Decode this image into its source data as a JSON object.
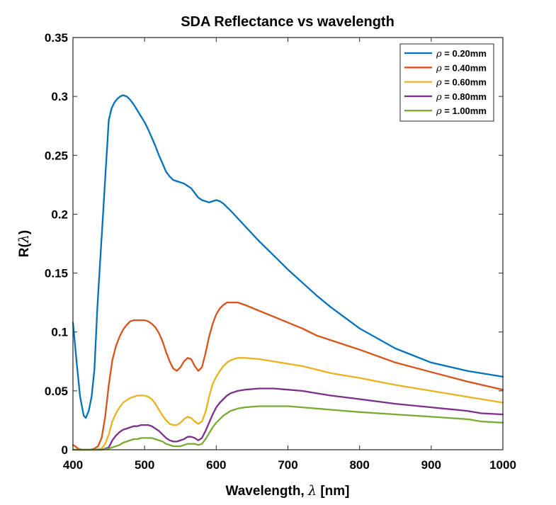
{
  "chart_data": {
    "type": "line",
    "title": "SDA Reflectance vs wavelength",
    "xlabel": {
      "prefix": "Wavelength, ",
      "symbol": "λ",
      "suffix": " [nm]"
    },
    "ylabel": {
      "prefix": "R(",
      "symbol": "λ",
      "suffix": ")"
    },
    "xlim": [
      400,
      1000
    ],
    "ylim": [
      0,
      0.35
    ],
    "xticks": [
      400,
      500,
      600,
      700,
      800,
      900,
      1000
    ],
    "yticks": [
      0,
      0.05,
      0.1,
      0.15,
      0.2,
      0.25,
      0.3,
      0.35
    ],
    "xtick_labels": [
      "400",
      "500",
      "600",
      "700",
      "800",
      "900",
      "1000"
    ],
    "ytick_labels": [
      "0",
      "0.05",
      "0.1",
      "0.15",
      "0.2",
      "0.25",
      "0.3",
      "0.35"
    ],
    "grid": false,
    "legend_position": "top-right",
    "series": [
      {
        "name": "ρ = 0.20mm",
        "symbol": "ρ",
        "label_rest": " = 0.20mm",
        "color": "#0072BD",
        "x": [
          400,
          405,
          410,
          415,
          418,
          422,
          426,
          430,
          434,
          438,
          442,
          446,
          450,
          454,
          458,
          462,
          466,
          470,
          475,
          480,
          485,
          490,
          495,
          500,
          505,
          510,
          515,
          520,
          525,
          530,
          535,
          540,
          545,
          550,
          555,
          560,
          565,
          570,
          575,
          580,
          585,
          590,
          595,
          600,
          605,
          610,
          620,
          640,
          660,
          680,
          700,
          720,
          740,
          760,
          800,
          850,
          900,
          950,
          1000
        ],
        "y": [
          0.108,
          0.075,
          0.045,
          0.029,
          0.027,
          0.033,
          0.045,
          0.068,
          0.12,
          0.16,
          0.2,
          0.24,
          0.28,
          0.29,
          0.295,
          0.298,
          0.3,
          0.301,
          0.3,
          0.297,
          0.293,
          0.288,
          0.283,
          0.278,
          0.272,
          0.265,
          0.258,
          0.25,
          0.243,
          0.236,
          0.232,
          0.229,
          0.228,
          0.227,
          0.226,
          0.224,
          0.222,
          0.218,
          0.214,
          0.212,
          0.211,
          0.21,
          0.211,
          0.212,
          0.211,
          0.209,
          0.203,
          0.19,
          0.177,
          0.165,
          0.153,
          0.142,
          0.131,
          0.121,
          0.103,
          0.086,
          0.074,
          0.067,
          0.062
        ]
      },
      {
        "name": "ρ = 0.40mm",
        "symbol": "ρ",
        "label_rest": " = 0.40mm",
        "color": "#D95319",
        "x": [
          400,
          403,
          407,
          412,
          418,
          425,
          430,
          435,
          440,
          445,
          450,
          455,
          460,
          465,
          470,
          475,
          480,
          485,
          490,
          495,
          500,
          505,
          510,
          515,
          520,
          525,
          530,
          535,
          540,
          545,
          550,
          555,
          560,
          565,
          570,
          575,
          580,
          585,
          590,
          595,
          600,
          605,
          610,
          615,
          620,
          630,
          640,
          660,
          680,
          700,
          720,
          740,
          760,
          800,
          850,
          900,
          950,
          1000
        ],
        "y": [
          0.004,
          0.003,
          0.001,
          0.0,
          0.0,
          0.0,
          0.001,
          0.003,
          0.01,
          0.028,
          0.055,
          0.076,
          0.088,
          0.096,
          0.102,
          0.106,
          0.109,
          0.11,
          0.11,
          0.11,
          0.11,
          0.109,
          0.107,
          0.104,
          0.099,
          0.092,
          0.083,
          0.075,
          0.069,
          0.067,
          0.07,
          0.075,
          0.078,
          0.077,
          0.071,
          0.067,
          0.07,
          0.082,
          0.096,
          0.107,
          0.115,
          0.12,
          0.123,
          0.125,
          0.125,
          0.125,
          0.123,
          0.118,
          0.113,
          0.108,
          0.103,
          0.097,
          0.093,
          0.085,
          0.074,
          0.066,
          0.058,
          0.051
        ]
      },
      {
        "name": "ρ = 0.60mm",
        "symbol": "ρ",
        "label_rest": " = 0.60mm",
        "color": "#EDB120",
        "x": [
          400,
          410,
          420,
          430,
          440,
          445,
          450,
          455,
          460,
          465,
          470,
          475,
          480,
          485,
          490,
          495,
          500,
          505,
          510,
          515,
          520,
          525,
          530,
          535,
          540,
          545,
          550,
          555,
          560,
          565,
          570,
          575,
          580,
          585,
          590,
          595,
          600,
          605,
          610,
          615,
          620,
          630,
          640,
          660,
          680,
          700,
          720,
          740,
          760,
          800,
          850,
          900,
          950,
          1000
        ],
        "y": [
          0.0,
          0.0,
          0.0,
          0.0,
          0.001,
          0.005,
          0.013,
          0.024,
          0.031,
          0.036,
          0.04,
          0.042,
          0.044,
          0.045,
          0.046,
          0.046,
          0.046,
          0.045,
          0.043,
          0.039,
          0.034,
          0.029,
          0.025,
          0.022,
          0.021,
          0.021,
          0.023,
          0.026,
          0.028,
          0.027,
          0.024,
          0.022,
          0.024,
          0.032,
          0.045,
          0.056,
          0.062,
          0.067,
          0.071,
          0.074,
          0.076,
          0.078,
          0.078,
          0.077,
          0.075,
          0.073,
          0.071,
          0.068,
          0.065,
          0.061,
          0.055,
          0.05,
          0.045,
          0.04
        ]
      },
      {
        "name": "ρ = 0.80mm",
        "symbol": "ρ",
        "label_rest": " = 0.80mm",
        "color": "#7E2F8E",
        "x": [
          400,
          410,
          420,
          430,
          440,
          450,
          455,
          460,
          465,
          470,
          475,
          480,
          485,
          490,
          495,
          500,
          505,
          510,
          515,
          520,
          525,
          530,
          535,
          540,
          545,
          550,
          555,
          560,
          565,
          570,
          575,
          580,
          585,
          590,
          595,
          600,
          605,
          610,
          615,
          620,
          630,
          640,
          660,
          680,
          700,
          720,
          740,
          760,
          800,
          850,
          900,
          950,
          970,
          1000
        ],
        "y": [
          0.0,
          0.0,
          0.0,
          0.0,
          0.0,
          0.002,
          0.008,
          0.012,
          0.015,
          0.017,
          0.018,
          0.019,
          0.02,
          0.02,
          0.021,
          0.021,
          0.021,
          0.02,
          0.018,
          0.016,
          0.013,
          0.01,
          0.008,
          0.007,
          0.007,
          0.008,
          0.009,
          0.011,
          0.011,
          0.01,
          0.008,
          0.01,
          0.016,
          0.023,
          0.03,
          0.036,
          0.04,
          0.043,
          0.046,
          0.048,
          0.05,
          0.051,
          0.052,
          0.052,
          0.051,
          0.05,
          0.048,
          0.046,
          0.043,
          0.039,
          0.036,
          0.033,
          0.031,
          0.03
        ]
      },
      {
        "name": "ρ = 1.00mm",
        "symbol": "ρ",
        "label_rest": " = 1.00mm",
        "color": "#77AC30",
        "x": [
          400,
          420,
          440,
          450,
          460,
          465,
          470,
          475,
          480,
          485,
          490,
          495,
          500,
          505,
          510,
          515,
          520,
          525,
          530,
          535,
          540,
          545,
          550,
          555,
          560,
          565,
          570,
          575,
          580,
          585,
          590,
          595,
          600,
          605,
          610,
          615,
          620,
          630,
          640,
          660,
          680,
          700,
          720,
          740,
          760,
          800,
          850,
          900,
          950,
          970,
          1000
        ],
        "y": [
          0.0,
          0.0,
          0.0,
          0.001,
          0.003,
          0.004,
          0.006,
          0.007,
          0.008,
          0.009,
          0.009,
          0.01,
          0.01,
          0.01,
          0.01,
          0.009,
          0.008,
          0.007,
          0.005,
          0.004,
          0.003,
          0.003,
          0.003,
          0.004,
          0.005,
          0.005,
          0.005,
          0.004,
          0.005,
          0.009,
          0.014,
          0.019,
          0.023,
          0.026,
          0.029,
          0.031,
          0.033,
          0.035,
          0.036,
          0.037,
          0.037,
          0.037,
          0.036,
          0.035,
          0.034,
          0.032,
          0.03,
          0.028,
          0.026,
          0.024,
          0.023
        ]
      }
    ]
  }
}
